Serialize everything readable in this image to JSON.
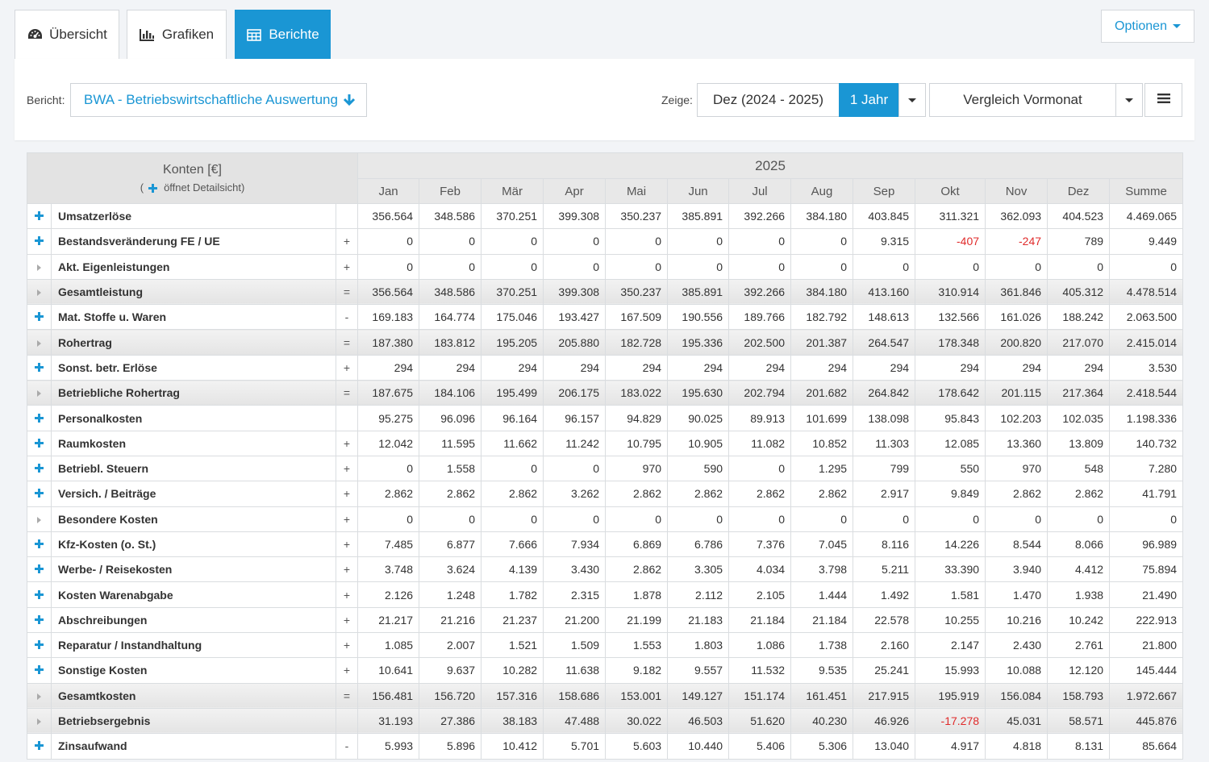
{
  "tabs": [
    {
      "label": "Übersicht",
      "icon": "dashboard-icon"
    },
    {
      "label": "Grafiken",
      "icon": "bar-chart-icon"
    },
    {
      "label": "Berichte",
      "icon": "table-icon",
      "active": true
    }
  ],
  "options_label": "Optionen",
  "filter": {
    "report_label": "Bericht:",
    "report_value": "BWA - Betriebswirtschaftliche Auswertung",
    "show_label": "Zeige:",
    "period": "Dez (2024 - 2025)",
    "range": "1 Jahr",
    "comparison": "Vergleich Vormonat"
  },
  "colors": {
    "accent": "#1a96d4",
    "negative": "#e02b2b"
  },
  "table": {
    "konten_header": "Konten [€]",
    "konten_hint": "öffnet Detailsicht)",
    "year": "2025",
    "months": [
      "Jan",
      "Feb",
      "Mär",
      "Apr",
      "Mai",
      "Jun",
      "Jul",
      "Aug",
      "Sep",
      "Okt",
      "Nov",
      "Dez",
      "Summe"
    ],
    "rows": [
      {
        "name": "Umsatzerlöse",
        "op": "",
        "expand": "plus",
        "total": false,
        "values": [
          "356.564",
          "348.586",
          "370.251",
          "399.308",
          "350.237",
          "385.891",
          "392.266",
          "384.180",
          "403.845",
          "311.321",
          "362.093",
          "404.523",
          "4.469.065"
        ]
      },
      {
        "name": "Bestandsveränderung FE / UE",
        "op": "+",
        "expand": "plus",
        "total": false,
        "values": [
          "0",
          "0",
          "0",
          "0",
          "0",
          "0",
          "0",
          "0",
          "9.315",
          "-407",
          "-247",
          "789",
          "9.449"
        ]
      },
      {
        "name": "Akt. Eigenleistungen",
        "op": "+",
        "expand": "tri",
        "total": false,
        "values": [
          "0",
          "0",
          "0",
          "0",
          "0",
          "0",
          "0",
          "0",
          "0",
          "0",
          "0",
          "0",
          "0"
        ]
      },
      {
        "name": "Gesamtleistung",
        "op": "=",
        "expand": "tri",
        "total": true,
        "values": [
          "356.564",
          "348.586",
          "370.251",
          "399.308",
          "350.237",
          "385.891",
          "392.266",
          "384.180",
          "413.160",
          "310.914",
          "361.846",
          "405.312",
          "4.478.514"
        ]
      },
      {
        "name": "Mat. Stoffe u. Waren",
        "op": "-",
        "expand": "plus",
        "total": false,
        "values": [
          "169.183",
          "164.774",
          "175.046",
          "193.427",
          "167.509",
          "190.556",
          "189.766",
          "182.792",
          "148.613",
          "132.566",
          "161.026",
          "188.242",
          "2.063.500"
        ]
      },
      {
        "name": "Rohertrag",
        "op": "=",
        "expand": "tri",
        "total": true,
        "values": [
          "187.380",
          "183.812",
          "195.205",
          "205.880",
          "182.728",
          "195.336",
          "202.500",
          "201.387",
          "264.547",
          "178.348",
          "200.820",
          "217.070",
          "2.415.014"
        ]
      },
      {
        "name": "Sonst. betr. Erlöse",
        "op": "+",
        "expand": "plus",
        "total": false,
        "values": [
          "294",
          "294",
          "294",
          "294",
          "294",
          "294",
          "294",
          "294",
          "294",
          "294",
          "294",
          "294",
          "3.530"
        ]
      },
      {
        "name": "Betriebliche Rohertrag",
        "op": "=",
        "expand": "tri",
        "total": true,
        "values": [
          "187.675",
          "184.106",
          "195.499",
          "206.175",
          "183.022",
          "195.630",
          "202.794",
          "201.682",
          "264.842",
          "178.642",
          "201.115",
          "217.364",
          "2.418.544"
        ]
      },
      {
        "name": "Personalkosten",
        "op": "",
        "expand": "plus",
        "total": false,
        "values": [
          "95.275",
          "96.096",
          "96.164",
          "96.157",
          "94.829",
          "90.025",
          "89.913",
          "101.699",
          "138.098",
          "95.843",
          "102.203",
          "102.035",
          "1.198.336"
        ]
      },
      {
        "name": "Raumkosten",
        "op": "+",
        "expand": "plus",
        "total": false,
        "values": [
          "12.042",
          "11.595",
          "11.662",
          "11.242",
          "10.795",
          "10.905",
          "11.082",
          "10.852",
          "11.303",
          "12.085",
          "13.360",
          "13.809",
          "140.732"
        ]
      },
      {
        "name": "Betriebl. Steuern",
        "op": "+",
        "expand": "plus",
        "total": false,
        "values": [
          "0",
          "1.558",
          "0",
          "0",
          "970",
          "590",
          "0",
          "1.295",
          "799",
          "550",
          "970",
          "548",
          "7.280"
        ]
      },
      {
        "name": "Versich. / Beiträge",
        "op": "+",
        "expand": "plus",
        "total": false,
        "values": [
          "2.862",
          "2.862",
          "2.862",
          "3.262",
          "2.862",
          "2.862",
          "2.862",
          "2.862",
          "2.917",
          "9.849",
          "2.862",
          "2.862",
          "41.791"
        ]
      },
      {
        "name": "Besondere Kosten",
        "op": "+",
        "expand": "tri",
        "total": false,
        "values": [
          "0",
          "0",
          "0",
          "0",
          "0",
          "0",
          "0",
          "0",
          "0",
          "0",
          "0",
          "0",
          "0"
        ]
      },
      {
        "name": "Kfz-Kosten (o. St.)",
        "op": "+",
        "expand": "plus",
        "total": false,
        "values": [
          "7.485",
          "6.877",
          "7.666",
          "7.934",
          "6.869",
          "6.786",
          "7.376",
          "7.045",
          "8.116",
          "14.226",
          "8.544",
          "8.066",
          "96.989"
        ]
      },
      {
        "name": "Werbe- / Reisekosten",
        "op": "+",
        "expand": "plus",
        "total": false,
        "values": [
          "3.748",
          "3.624",
          "4.139",
          "3.430",
          "2.862",
          "3.305",
          "4.034",
          "3.798",
          "5.211",
          "33.390",
          "3.940",
          "4.412",
          "75.894"
        ]
      },
      {
        "name": "Kosten Warenabgabe",
        "op": "+",
        "expand": "plus",
        "total": false,
        "values": [
          "2.126",
          "1.248",
          "1.782",
          "2.315",
          "1.878",
          "2.112",
          "2.105",
          "1.444",
          "1.492",
          "1.581",
          "1.470",
          "1.938",
          "21.490"
        ]
      },
      {
        "name": "Abschreibungen",
        "op": "+",
        "expand": "plus",
        "total": false,
        "values": [
          "21.217",
          "21.216",
          "21.237",
          "21.200",
          "21.199",
          "21.183",
          "21.184",
          "21.184",
          "22.578",
          "10.255",
          "10.216",
          "10.242",
          "222.913"
        ]
      },
      {
        "name": "Reparatur / Instandhaltung",
        "op": "+",
        "expand": "plus",
        "total": false,
        "values": [
          "1.085",
          "2.007",
          "1.521",
          "1.509",
          "1.553",
          "1.803",
          "1.086",
          "1.738",
          "2.160",
          "2.147",
          "2.430",
          "2.761",
          "21.800"
        ]
      },
      {
        "name": "Sonstige Kosten",
        "op": "+",
        "expand": "plus",
        "total": false,
        "values": [
          "10.641",
          "9.637",
          "10.282",
          "11.638",
          "9.182",
          "9.557",
          "11.532",
          "9.535",
          "25.241",
          "15.993",
          "10.088",
          "12.120",
          "145.444"
        ]
      },
      {
        "name": "Gesamtkosten",
        "op": "=",
        "expand": "tri",
        "total": true,
        "values": [
          "156.481",
          "156.720",
          "157.316",
          "158.686",
          "153.001",
          "149.127",
          "151.174",
          "161.451",
          "217.915",
          "195.919",
          "156.084",
          "158.793",
          "1.972.667"
        ]
      },
      {
        "name": "Betriebsergebnis",
        "op": "",
        "expand": "tri",
        "total": true,
        "values": [
          "31.193",
          "27.386",
          "38.183",
          "47.488",
          "30.022",
          "46.503",
          "51.620",
          "40.230",
          "46.926",
          "-17.278",
          "45.031",
          "58.571",
          "445.876"
        ]
      },
      {
        "name": "Zinsaufwand",
        "op": "-",
        "expand": "plus",
        "total": false,
        "values": [
          "5.993",
          "5.896",
          "10.412",
          "5.701",
          "5.603",
          "10.440",
          "5.406",
          "5.306",
          "13.040",
          "4.917",
          "4.818",
          "8.131",
          "85.664"
        ]
      }
    ]
  }
}
